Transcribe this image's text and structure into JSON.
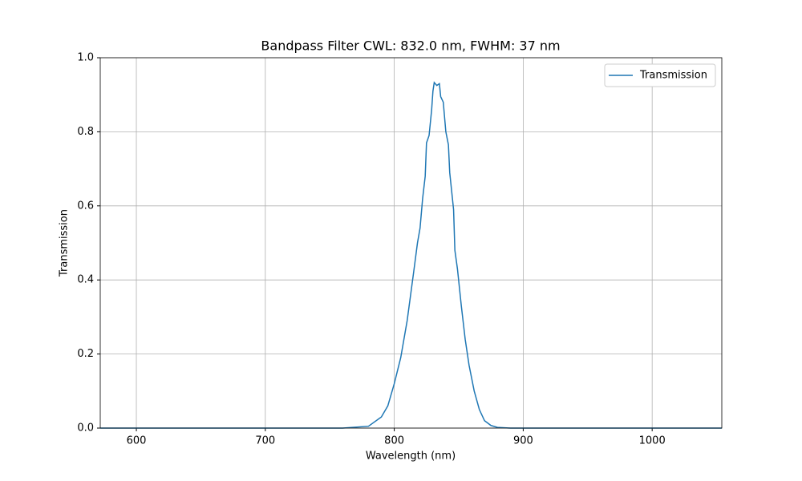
{
  "chart_data": {
    "type": "line",
    "title": "Bandpass Filter CWL: 832.0 nm, FWHM: 37 nm",
    "xlabel": "Wavelength (nm)",
    "ylabel": "Transmission",
    "x": [
      572,
      700,
      760,
      780,
      790,
      795,
      800,
      805,
      810,
      815,
      818,
      820,
      822,
      824,
      825,
      827,
      829,
      830,
      831,
      833,
      835,
      836,
      838,
      840,
      842,
      843,
      846,
      847,
      849,
      852,
      855,
      858,
      862,
      866,
      870,
      875,
      880,
      890,
      1000,
      1054
    ],
    "series": [
      {
        "name": "Transmission",
        "color": "#1f77b4",
        "values": [
          0,
          0,
          0,
          0.005,
          0.03,
          0.06,
          0.12,
          0.19,
          0.29,
          0.42,
          0.5,
          0.54,
          0.62,
          0.68,
          0.77,
          0.79,
          0.86,
          0.91,
          0.933,
          0.925,
          0.93,
          0.895,
          0.88,
          0.8,
          0.765,
          0.69,
          0.59,
          0.48,
          0.43,
          0.33,
          0.24,
          0.17,
          0.1,
          0.05,
          0.02,
          0.007,
          0.002,
          0,
          0,
          0
        ]
      }
    ],
    "xlim": [
      572,
      1054
    ],
    "ylim": [
      0,
      1
    ],
    "xticks": [
      600,
      700,
      800,
      900,
      1000
    ],
    "yticks": [
      {
        "value": 0,
        "label": "0.0"
      },
      0.2,
      0.4,
      0.6,
      0.8,
      {
        "value": 1,
        "label": "1.0"
      }
    ],
    "grid": true,
    "legend": "upper right"
  }
}
